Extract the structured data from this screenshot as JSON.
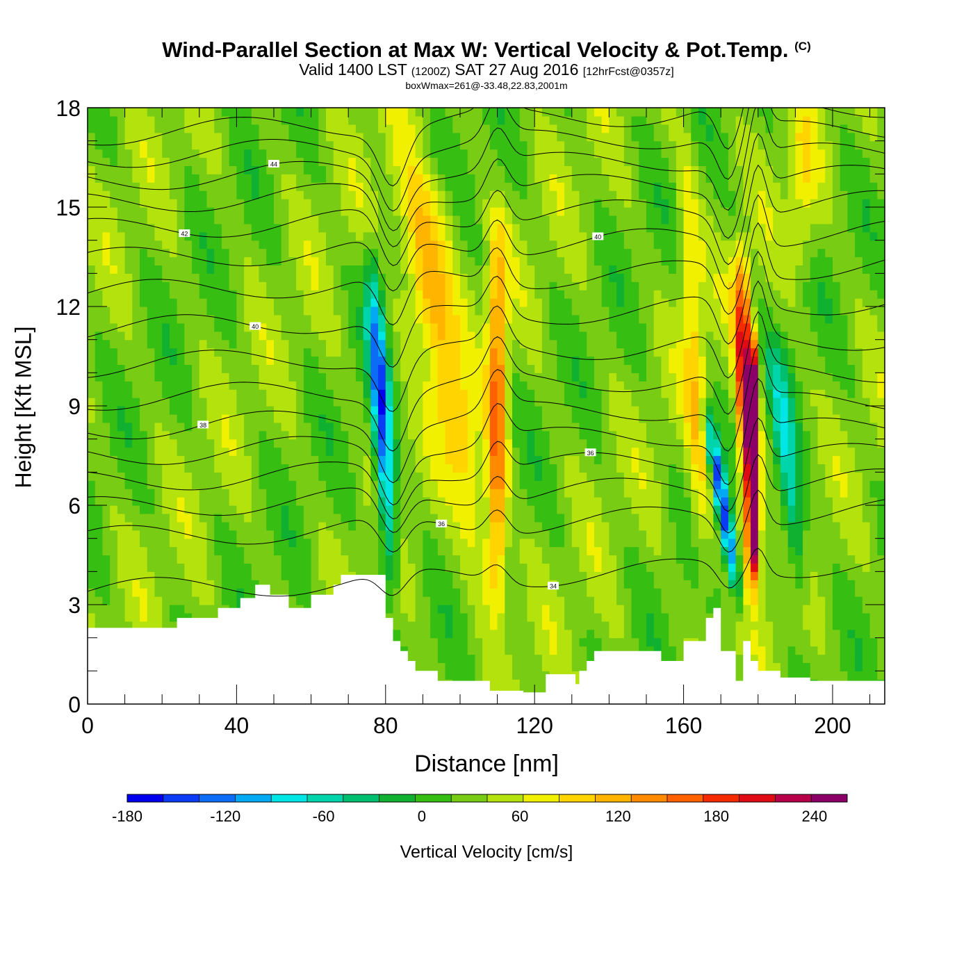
{
  "header": {
    "title": "Wind-Parallel Section at Max W: Vertical Velocity & Pot.Temp.",
    "copyright_mark": "(C)",
    "valid_prefix": "Valid 1400 LST",
    "valid_utc": "(1200Z)",
    "valid_date": "SAT 27 Aug 2016",
    "forecast_note": "[12hrFcst@0357z]",
    "box_wmax": "boxWmax=261@-33.48,22.83,2001m"
  },
  "chart_data": {
    "type": "heatmap",
    "title": "Wind-Parallel Section at Max W: Vertical Velocity & Pot.Temp.",
    "xlabel": "Distance [nm]",
    "ylabel": "Height [Kft MSL]",
    "xlim": [
      0,
      214
    ],
    "ylim": [
      0,
      18
    ],
    "x_ticks": [
      0,
      40,
      80,
      120,
      160,
      200
    ],
    "y_ticks": [
      0,
      3,
      6,
      9,
      12,
      15,
      18
    ],
    "colorbar": {
      "label": "Vertical Velocity [cm/s]",
      "range": [
        -180,
        260
      ],
      "step": 20,
      "tick_values": [
        -180,
        -120,
        -60,
        0,
        60,
        120,
        180,
        240
      ],
      "tick_labels": [
        "-180",
        "-120",
        "-60",
        "0",
        "60",
        "120",
        "180",
        "240"
      ],
      "colors": [
        "#0000ee",
        "#0a3cf5",
        "#0c6cf6",
        "#03a9f2",
        "#00e5e5",
        "#00d4aa",
        "#00c070",
        "#10b030",
        "#36be12",
        "#78cc14",
        "#b4e20c",
        "#f0f000",
        "#ffd400",
        "#ffb400",
        "#ff8a00",
        "#ff6000",
        "#f52a00",
        "#e00a14",
        "#b8004a",
        "#8a0068"
      ]
    },
    "background_w": 10,
    "updrafts": [
      {
        "x_top": 82,
        "x_bot": 110,
        "y_top": 18,
        "y_bot": 2.2,
        "w": 5,
        "peak": 70
      },
      {
        "x_top": 92,
        "x_bot": 92,
        "y_top": 16,
        "y_bot": 11,
        "w": 8,
        "peak": 40
      },
      {
        "x_top": 110,
        "x_bot": 110,
        "y_top": 15,
        "y_bot": 2.3,
        "w": 2.6,
        "peak": 115
      },
      {
        "x_top": 160,
        "x_bot": 166,
        "y_top": 18,
        "y_bot": 2.2,
        "w": 3,
        "peak": 55
      },
      {
        "x_top": 175,
        "x_bot": 179,
        "y_top": 14,
        "y_bot": 3,
        "w": 2.4,
        "peak": 195
      },
      {
        "x_top": 179,
        "x_bot": 179,
        "y_top": 11,
        "y_bot": 4,
        "w": 1.2,
        "peak": 250
      },
      {
        "x_top": 192,
        "x_bot": 192,
        "y_top": 18,
        "y_bot": 13,
        "w": 4,
        "peak": 40
      }
    ],
    "downdrafts": [
      {
        "x_top": 76,
        "x_bot": 82,
        "y_top": 14,
        "y_bot": 3.2,
        "w": 2.5,
        "peak": -150
      },
      {
        "x_top": 166,
        "x_bot": 175,
        "y_top": 9,
        "y_bot": 3,
        "w": 1.8,
        "peak": -170
      },
      {
        "x_top": 184,
        "x_bot": 192,
        "y_top": 11,
        "y_bot": 3,
        "w": 3,
        "peak": -90
      }
    ],
    "terrain_x": [
      0,
      24,
      24,
      35,
      35,
      41,
      41,
      45,
      45,
      49,
      49,
      54,
      54,
      60,
      60,
      66,
      66,
      68,
      68,
      70,
      70,
      80,
      80,
      82,
      82,
      84,
      84,
      86,
      86,
      88,
      88,
      94,
      94,
      108,
      108,
      117,
      117,
      123,
      123,
      131,
      131,
      132,
      132,
      134,
      134,
      136,
      136,
      154,
      154,
      160,
      160,
      166,
      166,
      168,
      168,
      170,
      170,
      174,
      174,
      176,
      176,
      178,
      178,
      180,
      180,
      186,
      186,
      194,
      194,
      205,
      205,
      210,
      210,
      214
    ],
    "terrain_y": [
      2.3,
      2.3,
      2.6,
      2.6,
      2.9,
      2.9,
      3.2,
      3.2,
      3.6,
      3.6,
      3.3,
      3.3,
      2.9,
      2.9,
      3.3,
      3.3,
      3.6,
      3.6,
      3.9,
      3.9,
      3.9,
      3.9,
      2.6,
      2.6,
      1.9,
      1.9,
      1.6,
      1.6,
      1.3,
      1.3,
      1.0,
      1.0,
      0.7,
      0.7,
      0.4,
      0.4,
      0.35,
      0.35,
      0.9,
      0.9,
      0.6,
      0.6,
      1.0,
      1.0,
      1.3,
      1.3,
      1.6,
      1.6,
      1.3,
      1.3,
      1.9,
      1.9,
      2.6,
      2.6,
      2.9,
      2.9,
      1.6,
      1.6,
      0.7,
      0.7,
      1.9,
      1.9,
      1.3,
      1.3,
      1.0,
      1.0,
      0.8,
      0.8,
      0.7,
      0.7,
      0.7,
      0.7,
      0.7,
      0.7
    ],
    "theta_contours": [
      {
        "label": "34",
        "base": 3.8,
        "label_x": 125
      },
      {
        "label": "36",
        "base": 5.4,
        "label_x": 95
      },
      {
        "label": "",
        "base": 6.3
      },
      {
        "label": "36",
        "base": 7.1,
        "label_x": 135
      },
      {
        "label": "",
        "base": 7.9
      },
      {
        "label": "38",
        "base": 8.7,
        "label_x": 31
      },
      {
        "label": "",
        "base": 9.6
      },
      {
        "label": "",
        "base": 10.6
      },
      {
        "label": "40",
        "base": 11.7,
        "label_x": 45
      },
      {
        "label": "",
        "base": 12.8
      },
      {
        "label": "40",
        "base": 13.8,
        "label_x": 137
      },
      {
        "label": "42",
        "base": 14.7,
        "label_x": 26
      },
      {
        "label": "",
        "base": 15.5
      },
      {
        "label": "44",
        "base": 16.2,
        "label_x": 50
      },
      {
        "label": "",
        "base": 16.9
      },
      {
        "label": "",
        "base": 17.6
      }
    ],
    "grid": false
  }
}
